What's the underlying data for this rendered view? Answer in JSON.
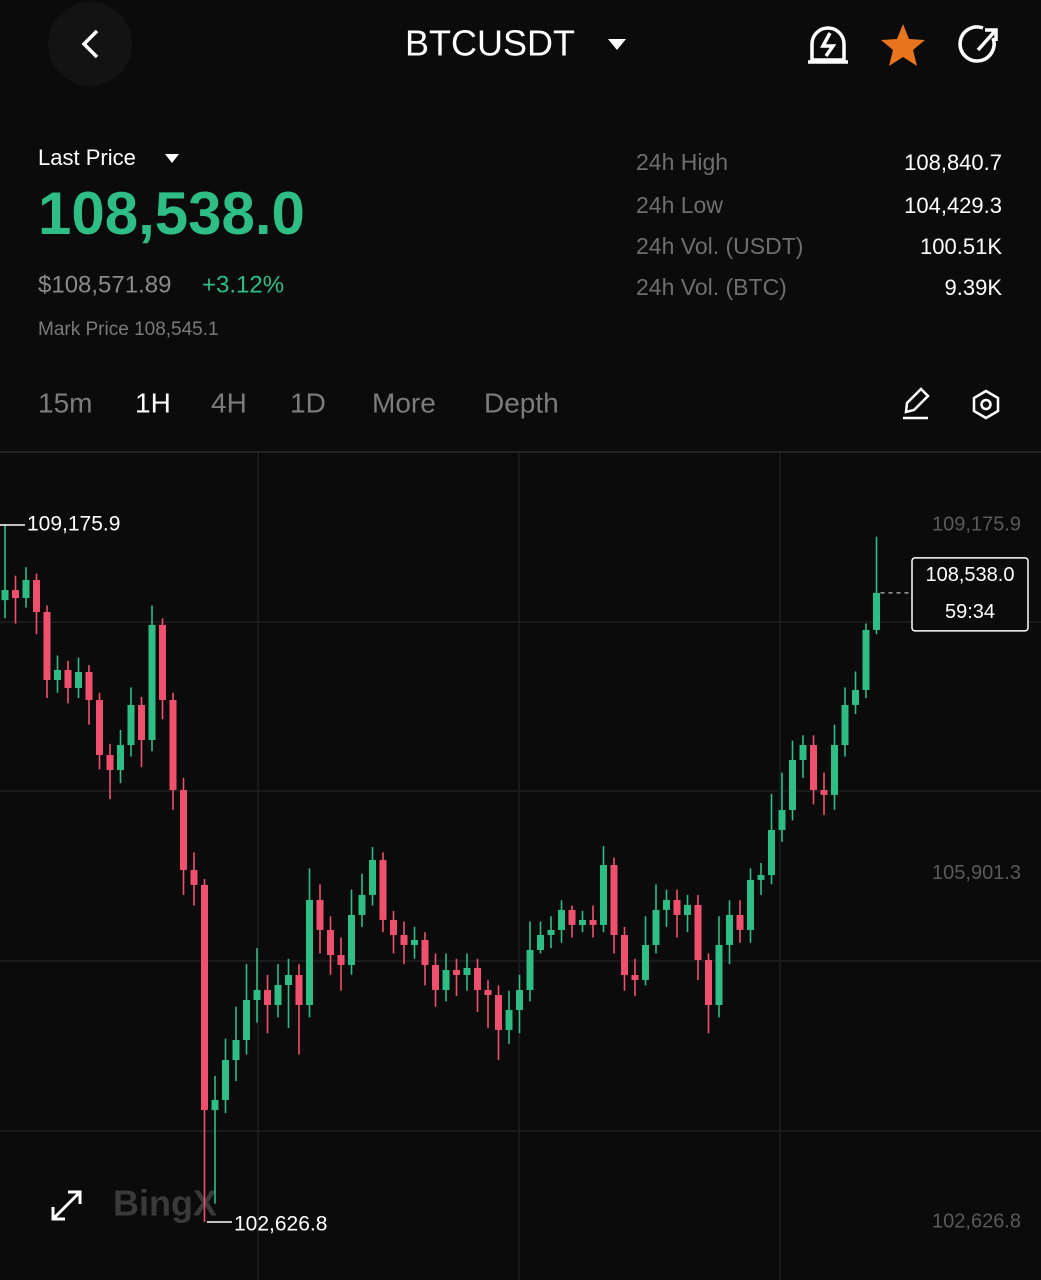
{
  "header": {
    "title": "BTCUSDT"
  },
  "price": {
    "label": "Last Price",
    "last": "108,538.0",
    "usd": "$108,571.89",
    "change": "+3.12%",
    "mark": "Mark Price 108,545.1"
  },
  "stats": [
    {
      "label": "24h High",
      "value": "108,840.7"
    },
    {
      "label": "24h Low",
      "value": "104,429.3"
    },
    {
      "label": "24h Vol. (USDT)",
      "value": "100.51K"
    },
    {
      "label": "24h Vol. (BTC)",
      "value": "9.39K"
    }
  ],
  "tabs": [
    "15m",
    "1H",
    "4H",
    "1D",
    "More",
    "Depth"
  ],
  "watermark": "BingX",
  "chart_data": {
    "type": "candlestick",
    "up_color": "#2ebd85",
    "down_color": "#f0506e",
    "ylim": [
      102082,
      109862
    ],
    "yticks": [
      {
        "value": 109175.9,
        "label": "109,175.9"
      },
      {
        "value": 105901.3,
        "label": "105,901.3"
      },
      {
        "value": 102626.8,
        "label": "102,626.8"
      }
    ],
    "high_marker": {
      "value": 109175.9,
      "label": "109,175.9"
    },
    "low_marker": {
      "value": 102626.8,
      "label": "102,626.8"
    },
    "last_price": {
      "value": 108538,
      "label": "108,538.0"
    },
    "countdown": "59:34",
    "candles": [
      [
        108470,
        109175.9,
        108300,
        108565
      ],
      [
        108565,
        108700,
        108250,
        108490
      ],
      [
        108490,
        108780,
        108400,
        108659
      ],
      [
        108659,
        108720,
        108150,
        108359
      ],
      [
        108359,
        108420,
        107550,
        107720
      ],
      [
        107720,
        107950,
        107600,
        107814
      ],
      [
        107814,
        107900,
        107500,
        107645
      ],
      [
        107645,
        107930,
        107550,
        107795
      ],
      [
        107795,
        107860,
        107300,
        107532
      ],
      [
        107532,
        107600,
        106880,
        107015
      ],
      [
        107015,
        107120,
        106600,
        106874
      ],
      [
        106874,
        107250,
        106750,
        107109
      ],
      [
        107109,
        107650,
        107000,
        107485
      ],
      [
        107485,
        107560,
        106900,
        107156
      ],
      [
        107156,
        108420,
        107050,
        108237
      ],
      [
        108237,
        108300,
        107350,
        107532
      ],
      [
        107532,
        107600,
        106500,
        106686
      ],
      [
        106686,
        106800,
        105700,
        105935
      ],
      [
        105935,
        106100,
        105600,
        105794
      ],
      [
        105794,
        105850,
        102626.8,
        103679
      ],
      [
        103679,
        104000,
        102800,
        103773
      ],
      [
        103773,
        104350,
        103650,
        104149
      ],
      [
        104149,
        104650,
        103950,
        104337
      ],
      [
        104337,
        105050,
        104200,
        104713
      ],
      [
        104713,
        105200,
        104500,
        104807
      ],
      [
        104807,
        104950,
        104400,
        104666
      ],
      [
        104666,
        105050,
        104550,
        104854
      ],
      [
        104854,
        105100,
        104450,
        104948
      ],
      [
        104948,
        105050,
        104200,
        104666
      ],
      [
        104666,
        105950,
        104550,
        105653
      ],
      [
        105653,
        105800,
        105150,
        105371
      ],
      [
        105371,
        105500,
        104950,
        105136
      ],
      [
        105136,
        105300,
        104800,
        105042
      ],
      [
        105042,
        105750,
        104950,
        105512
      ],
      [
        105512,
        105900,
        105400,
        105700
      ],
      [
        105700,
        106150,
        105600,
        106028
      ],
      [
        106028,
        106100,
        105350,
        105465
      ],
      [
        105465,
        105550,
        105150,
        105324
      ],
      [
        105324,
        105450,
        105050,
        105230
      ],
      [
        105230,
        105400,
        105100,
        105277
      ],
      [
        105277,
        105350,
        104850,
        105042
      ],
      [
        105042,
        105150,
        104650,
        104807
      ],
      [
        104807,
        105150,
        104700,
        104995
      ],
      [
        104995,
        105100,
        104750,
        104948
      ],
      [
        104948,
        105150,
        104800,
        105014
      ],
      [
        105014,
        105100,
        104600,
        104807
      ],
      [
        104807,
        104900,
        104450,
        104760
      ],
      [
        104760,
        104850,
        104150,
        104431
      ],
      [
        104431,
        104800,
        104300,
        104619
      ],
      [
        104619,
        104950,
        104400,
        104807
      ],
      [
        104807,
        105450,
        104700,
        105183
      ],
      [
        105183,
        105450,
        105150,
        105324
      ],
      [
        105324,
        105500,
        105200,
        105371
      ],
      [
        105371,
        105650,
        105250,
        105559
      ],
      [
        105559,
        105600,
        105300,
        105418
      ],
      [
        105418,
        105550,
        105350,
        105465
      ],
      [
        105465,
        105600,
        105300,
        105418
      ],
      [
        105418,
        106160,
        105350,
        105981
      ],
      [
        105981,
        106050,
        105150,
        105324
      ],
      [
        105324,
        105400,
        104800,
        104948
      ],
      [
        104948,
        105100,
        104750,
        104901
      ],
      [
        104901,
        105500,
        104850,
        105230
      ],
      [
        105230,
        105800,
        105150,
        105559
      ],
      [
        105559,
        105750,
        105400,
        105653
      ],
      [
        105653,
        105750,
        105300,
        105512
      ],
      [
        105512,
        105700,
        105350,
        105606
      ],
      [
        105606,
        105700,
        104900,
        105089
      ],
      [
        105089,
        105150,
        104400,
        104666
      ],
      [
        104666,
        105500,
        104550,
        105230
      ],
      [
        105230,
        105650,
        105050,
        105512
      ],
      [
        105512,
        105650,
        105250,
        105371
      ],
      [
        105371,
        105950,
        105250,
        105841
      ],
      [
        105841,
        106000,
        105700,
        105887
      ],
      [
        105887,
        106650,
        105800,
        106310
      ],
      [
        106310,
        106850,
        106200,
        106498
      ],
      [
        106498,
        107150,
        106400,
        106968
      ],
      [
        106968,
        107200,
        106800,
        107109
      ],
      [
        107109,
        107200,
        106550,
        106686
      ],
      [
        106686,
        106850,
        106450,
        106640
      ],
      [
        106640,
        107300,
        106500,
        107109
      ],
      [
        107109,
        107650,
        107000,
        107485
      ],
      [
        107485,
        107800,
        107400,
        107626
      ],
      [
        107626,
        108250,
        107550,
        108190
      ],
      [
        108190,
        109066,
        108150,
        108538
      ]
    ]
  }
}
